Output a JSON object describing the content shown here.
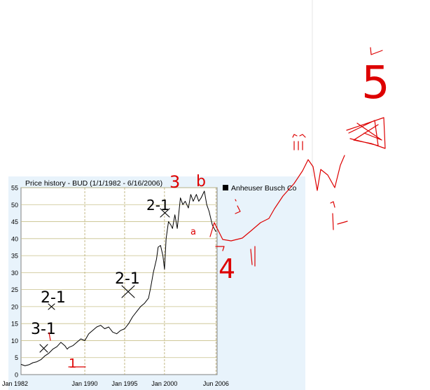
{
  "chart_data": {
    "type": "line",
    "title": "Price history - BUD (1/1/1982 - 6/16/2006)",
    "legend": {
      "label": "Anheuser Busch Co",
      "placement": "top-right",
      "color": "#000000"
    },
    "y_ticks": [
      "0",
      "5",
      "10",
      "15",
      "20",
      "25",
      "30",
      "35",
      "40",
      "45",
      "50",
      "55"
    ],
    "ylim": [
      0,
      55
    ],
    "x_ticks": [
      "Jan 1982",
      "Jan 1990",
      "Jan 1995",
      "Jan 2000",
      "Jun 2006"
    ],
    "x_tick_years": [
      1982,
      1990,
      1995,
      2000,
      2006.46
    ],
    "xlim": [
      1982,
      2006.6
    ],
    "grid": true,
    "series": [
      {
        "color": "#000000",
        "x": [
          1982.0,
          1982.5,
          1983.0,
          1983.5,
          1984.0,
          1984.5,
          1985.0,
          1985.5,
          1986.0,
          1986.5,
          1987.0,
          1987.5,
          1987.8,
          1988.0,
          1988.5,
          1989.0,
          1989.5,
          1990.0,
          1990.5,
          1991.0,
          1991.5,
          1992.0,
          1992.5,
          1993.0,
          1993.5,
          1994.0,
          1994.5,
          1995.0,
          1995.5,
          1996.0,
          1996.5,
          1997.0,
          1997.5,
          1998.0,
          1998.3,
          1998.6,
          1999.0,
          1999.2,
          1999.5,
          1999.8,
          2000.0,
          2000.2,
          2000.5,
          2000.8,
          2001.0,
          2001.3,
          2001.6,
          2002.0,
          2002.3,
          2002.6,
          2003.0,
          2003.3,
          2003.6,
          2004.0,
          2004.3,
          2004.6,
          2005.0,
          2005.3,
          2005.6,
          2006.0,
          2006.46
        ],
        "y": [
          3,
          2.6,
          2.9,
          3.5,
          3.8,
          4.4,
          5.5,
          6.3,
          7.5,
          8.2,
          9.5,
          8.5,
          7.5,
          8.0,
          8.5,
          9.5,
          10.5,
          10.0,
          12.0,
          13.0,
          14.0,
          14.5,
          13.5,
          14.0,
          12.5,
          12.0,
          13.0,
          13.5,
          15.0,
          17.0,
          18.5,
          20.0,
          21.0,
          22.5,
          26.0,
          30.0,
          34.0,
          37.5,
          38.0,
          35.0,
          31.0,
          40.0,
          45.0,
          44.0,
          43.0,
          47.0,
          43.0,
          52.0,
          50.0,
          51.0,
          49.0,
          53.0,
          51.0,
          53.0,
          51.0,
          52.0,
          54.0,
          50.0,
          48.0,
          44.0,
          42.0
        ]
      }
    ],
    "annotations": [
      {
        "text": "3-1",
        "color": "#000000"
      },
      {
        "text": "2-1",
        "color": "#000000"
      },
      {
        "text": "2-1",
        "color": "#000000"
      },
      {
        "text": "2-1",
        "color": "#000000"
      },
      {
        "text": "1",
        "color": "#dd0000"
      },
      {
        "text": "3",
        "color": "#dd0000"
      },
      {
        "text": "b",
        "color": "#dd0000"
      },
      {
        "text": "a",
        "color": "#dd0000"
      },
      {
        "text": "4",
        "color": "#dd0000"
      },
      {
        "text": "5",
        "color": "#dd0000"
      }
    ]
  }
}
